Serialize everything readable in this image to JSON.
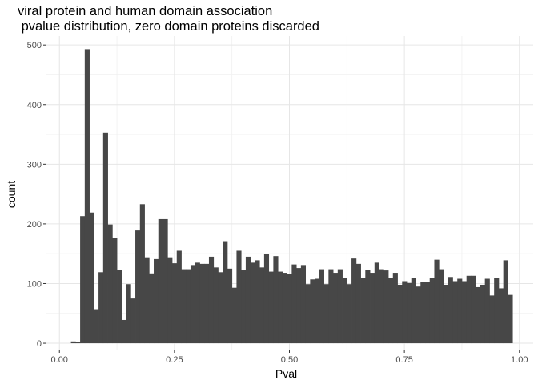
{
  "chart_data": {
    "type": "bar",
    "title_line1": "viral protein and human domain association",
    "title_line2": " pvalue distribution, zero domain proteins discarded",
    "xlabel": "Pval",
    "ylabel": "count",
    "xlim": [
      -0.03,
      1.03
    ],
    "ylim": [
      -12,
      515
    ],
    "x_ticks": [
      0.0,
      0.25,
      0.5,
      0.75,
      1.0
    ],
    "x_tick_labels": [
      "0.00",
      "0.25",
      "0.50",
      "0.75",
      "1.00"
    ],
    "y_ticks": [
      0,
      100,
      200,
      300,
      400,
      500
    ],
    "y_tick_labels": [
      "0",
      "100",
      "200",
      "300",
      "400",
      "500"
    ],
    "grid": true,
    "bar_color": "#474747",
    "bins_start": 0.025,
    "bin_width": 0.01,
    "values": [
      3,
      2,
      213,
      493,
      219,
      57,
      119,
      353,
      199,
      177,
      123,
      39,
      99,
      75,
      189,
      233,
      144,
      117,
      141,
      208,
      208,
      144,
      134,
      155,
      124,
      124,
      131,
      135,
      133,
      133,
      145,
      127,
      119,
      171,
      125,
      93,
      155,
      123,
      145,
      135,
      139,
      127,
      150,
      120,
      146,
      120,
      118,
      116,
      132,
      126,
      131,
      99,
      107,
      108,
      124,
      99,
      124,
      118,
      124,
      109,
      99,
      142,
      133,
      109,
      123,
      118,
      135,
      124,
      122,
      109,
      118,
      98,
      104,
      101,
      110,
      95,
      103,
      102,
      109,
      140,
      124,
      98,
      111,
      104,
      108,
      104,
      113,
      113,
      94,
      98,
      108,
      80,
      110,
      92,
      139,
      81
    ]
  }
}
